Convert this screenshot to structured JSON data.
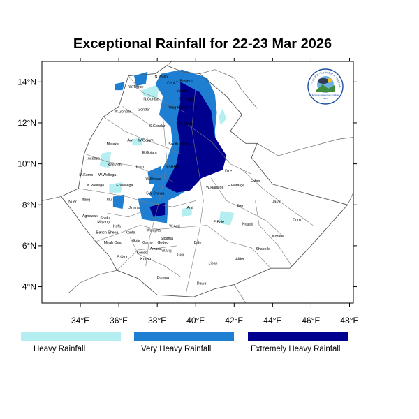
{
  "title": "Exceptional Rainfall for 22-23 Mar 2026",
  "logo": {
    "name": "Ethiopian Meteorology Institute logo",
    "text": "Ethiopian Meteorology Institute",
    "amharic": "የኢትዮጵያ ሚቲዎሮሎጂ ኢንስቲትዩት",
    "year": "EMI"
  },
  "axes": {
    "lon": {
      "range": [
        32,
        48.2
      ],
      "ticks": [
        34,
        36,
        38,
        40,
        42,
        44,
        46,
        48
      ],
      "tick_labels": [
        "34°E",
        "36°E",
        "38°E",
        "40°E",
        "42°E",
        "44°E",
        "46°E",
        "48°E"
      ]
    },
    "lat": {
      "range": [
        3.2,
        15
      ],
      "ticks": [
        4,
        6,
        8,
        10,
        12,
        14
      ],
      "tick_labels": [
        "4°N",
        "6°N",
        "8°N",
        "10°N",
        "12°N",
        "14°N"
      ]
    }
  },
  "legend": {
    "items": [
      {
        "label": "Heavy Rainfall",
        "color": "#b4eef0"
      },
      {
        "label": "Very Heavy Rainfall",
        "color": "#1e7ed2"
      },
      {
        "label": "Extremely Heavy Rainfall",
        "color": "#00008e"
      }
    ]
  },
  "categories": {
    "heavy": {
      "color": "#b4eef0"
    },
    "very_heavy": {
      "color": "#1e7ed2"
    },
    "extreme": {
      "color": "#00008e"
    }
  },
  "rain_areas": {
    "very_heavy": [
      [
        [
          38.2,
          14.4
        ],
        [
          39.3,
          14.6
        ],
        [
          40.6,
          14.2
        ],
        [
          41.0,
          13.4
        ],
        [
          41.1,
          12.5
        ],
        [
          41.0,
          11.6
        ],
        [
          41.1,
          10.4
        ],
        [
          40.3,
          9.7
        ],
        [
          39.7,
          8.8
        ],
        [
          39.0,
          8.4
        ],
        [
          38.0,
          8.0
        ],
        [
          37.6,
          8.5
        ],
        [
          38.0,
          9.3
        ],
        [
          38.5,
          10.2
        ],
        [
          38.8,
          11.0
        ],
        [
          38.7,
          11.8
        ],
        [
          38.1,
          12.4
        ],
        [
          38.3,
          13.3
        ],
        [
          37.9,
          13.9
        ]
      ],
      [
        [
          36.8,
          14.3
        ],
        [
          37.5,
          14.5
        ],
        [
          37.4,
          13.9
        ],
        [
          36.9,
          13.8
        ]
      ],
      [
        [
          35.8,
          13.9
        ],
        [
          36.3,
          14.0
        ],
        [
          36.2,
          13.6
        ],
        [
          35.8,
          13.6
        ]
      ],
      [
        [
          37.5,
          9.6
        ],
        [
          38.2,
          9.9
        ],
        [
          38.3,
          9.1
        ],
        [
          37.6,
          9.0
        ]
      ],
      [
        [
          37.0,
          8.3
        ],
        [
          38.6,
          8.4
        ],
        [
          38.5,
          7.1
        ],
        [
          37.2,
          7.3
        ]
      ],
      [
        [
          35.7,
          8.4
        ],
        [
          36.3,
          8.5
        ],
        [
          36.2,
          7.8
        ],
        [
          35.7,
          7.9
        ]
      ]
    ],
    "extreme": [
      [
        [
          39.2,
          14.0
        ],
        [
          40.2,
          13.5
        ],
        [
          40.8,
          12.6
        ],
        [
          41.0,
          11.3
        ],
        [
          41.6,
          10.4
        ],
        [
          41.4,
          9.7
        ],
        [
          40.3,
          9.3
        ],
        [
          39.7,
          8.7
        ],
        [
          39.0,
          8.6
        ],
        [
          38.4,
          8.9
        ],
        [
          39.0,
          10.0
        ],
        [
          39.2,
          11.0
        ],
        [
          39.0,
          12.0
        ],
        [
          39.2,
          13.0
        ]
      ],
      [
        [
          37.6,
          7.9
        ],
        [
          38.4,
          8.1
        ],
        [
          38.4,
          7.5
        ],
        [
          37.8,
          7.4
        ]
      ]
    ],
    "heavy": [
      [
        [
          35.1,
          10.5
        ],
        [
          35.6,
          10.6
        ],
        [
          35.5,
          9.8
        ],
        [
          35.0,
          9.9
        ]
      ],
      [
        [
          36.7,
          11.2
        ],
        [
          37.3,
          11.3
        ],
        [
          37.2,
          10.9
        ],
        [
          36.7,
          10.9
        ]
      ],
      [
        [
          41.3,
          7.7
        ],
        [
          42.0,
          7.6
        ],
        [
          41.8,
          7.0
        ],
        [
          41.2,
          7.1
        ]
      ],
      [
        [
          39.3,
          7.8
        ],
        [
          39.8,
          7.9
        ],
        [
          39.8,
          7.5
        ],
        [
          39.3,
          7.4
        ]
      ],
      [
        [
          41.2,
          12.3
        ],
        [
          41.4,
          12.7
        ],
        [
          41.6,
          12.2
        ],
        [
          41.3,
          11.9
        ]
      ],
      [
        [
          35.5,
          9.0
        ],
        [
          36.2,
          9.1
        ],
        [
          36.1,
          8.6
        ],
        [
          35.5,
          8.6
        ]
      ],
      [
        [
          37.2,
          13.6
        ],
        [
          38.1,
          13.9
        ],
        [
          38.0,
          13.2
        ],
        [
          37.3,
          13.3
        ]
      ]
    ]
  },
  "country_outline": [
    [
      33.0,
      8.4
    ],
    [
      33.9,
      8.8
    ],
    [
      34.2,
      10.5
    ],
    [
      34.5,
      11.2
    ],
    [
      35.2,
      12.3
    ],
    [
      36.0,
      12.8
    ],
    [
      36.5,
      14.3
    ],
    [
      37.9,
      14.4
    ],
    [
      38.5,
      14.8
    ],
    [
      39.3,
      14.5
    ],
    [
      40.2,
      14.4
    ],
    [
      41.6,
      13.3
    ],
    [
      42.4,
      12.4
    ],
    [
      41.8,
      11.6
    ],
    [
      42.6,
      11.0
    ],
    [
      43.2,
      11.0
    ],
    [
      42.9,
      10.3
    ],
    [
      44.0,
      9.0
    ],
    [
      47.9,
      8.0
    ],
    [
      46.0,
      6.0
    ],
    [
      44.9,
      4.9
    ],
    [
      43.9,
      4.9
    ],
    [
      42.0,
      4.1
    ],
    [
      41.0,
      3.9
    ],
    [
      39.9,
      3.5
    ],
    [
      38.0,
      3.6
    ],
    [
      37.0,
      4.4
    ],
    [
      35.9,
      4.8
    ],
    [
      35.5,
      5.5
    ],
    [
      34.8,
      6.2
    ],
    [
      34.2,
      6.9
    ],
    [
      33.6,
      7.7
    ]
  ],
  "neighbor_lines": [
    [
      [
        32,
        8.2
      ],
      [
        33.0,
        8.4
      ]
    ],
    [
      [
        38.5,
        14.8
      ],
      [
        39.0,
        15.2
      ]
    ],
    [
      [
        40.2,
        14.4
      ],
      [
        41.0,
        14.6
      ],
      [
        42.0,
        14.2
      ],
      [
        42.4,
        13.6
      ],
      [
        43.2,
        12.7
      ]
    ],
    [
      [
        43.2,
        11.0
      ],
      [
        44.3,
        10.4
      ],
      [
        45.8,
        10.8
      ],
      [
        47.4,
        11.2
      ],
      [
        48.2,
        11.3
      ]
    ],
    [
      [
        47.9,
        8.0
      ],
      [
        48.2,
        8.6
      ]
    ],
    [
      [
        42.0,
        4.1
      ],
      [
        42.6,
        3.2
      ]
    ],
    [
      [
        35.9,
        4.8
      ],
      [
        35.0,
        4.6
      ],
      [
        34.0,
        4.2
      ]
    ],
    [
      [
        32,
        3.7
      ],
      [
        33.4,
        3.7
      ],
      [
        34.0,
        4.2
      ]
    ]
  ],
  "admin_lines": [
    [
      [
        36.5,
        14.3
      ],
      [
        37.2,
        13.5
      ],
      [
        38.0,
        13.2
      ],
      [
        38.8,
        12.8
      ],
      [
        39.5,
        12.5
      ]
    ],
    [
      [
        35.2,
        12.3
      ],
      [
        36.3,
        11.6
      ],
      [
        37.3,
        11.2
      ],
      [
        38.2,
        10.9
      ],
      [
        39.2,
        10.5
      ]
    ],
    [
      [
        34.2,
        10.5
      ],
      [
        35.4,
        10.1
      ],
      [
        36.8,
        9.9
      ],
      [
        37.9,
        9.5
      ],
      [
        38.9,
        9.1
      ]
    ],
    [
      [
        33.9,
        8.8
      ],
      [
        35.2,
        8.6
      ],
      [
        36.4,
        8.4
      ],
      [
        37.5,
        8.1
      ],
      [
        38.8,
        7.9
      ],
      [
        40.0,
        8.2
      ]
    ],
    [
      [
        34.8,
        6.2
      ],
      [
        36.0,
        6.6
      ],
      [
        37.1,
        7.0
      ],
      [
        38.0,
        6.8
      ],
      [
        39.3,
        6.9
      ],
      [
        40.6,
        7.0
      ]
    ],
    [
      [
        35.9,
        4.8
      ],
      [
        37.0,
        5.8
      ],
      [
        38.2,
        5.9
      ],
      [
        39.0,
        6.0
      ]
    ],
    [
      [
        39.6,
        11.9
      ],
      [
        40.8,
        11.1
      ],
      [
        41.8,
        10.0
      ],
      [
        42.9,
        9.5
      ]
    ],
    [
      [
        40.8,
        9.3
      ],
      [
        41.6,
        8.2
      ],
      [
        42.5,
        7.8
      ],
      [
        43.7,
        7.2
      ],
      [
        44.5,
        6.5
      ]
    ],
    [
      [
        40.6,
        7.0
      ],
      [
        41.7,
        6.2
      ],
      [
        42.9,
        5.9
      ],
      [
        43.9,
        4.9
      ]
    ],
    [
      [
        38.3,
        12.3
      ],
      [
        38.4,
        11.2
      ],
      [
        38.5,
        10.1
      ],
      [
        38.3,
        9.0
      ],
      [
        38.0,
        7.8
      ],
      [
        37.6,
        6.4
      ],
      [
        37.4,
        5.0
      ]
    ],
    [
      [
        40.0,
        13.8
      ],
      [
        39.9,
        12.8
      ],
      [
        39.8,
        11.7
      ],
      [
        40.0,
        10.5
      ],
      [
        40.2,
        9.4
      ],
      [
        40.4,
        8.2
      ],
      [
        40.2,
        6.8
      ],
      [
        39.8,
        5.0
      ],
      [
        39.5,
        3.7
      ]
    ],
    [
      [
        42.3,
        9.8
      ],
      [
        43.6,
        8.7
      ],
      [
        44.9,
        7.8
      ],
      [
        46.1,
        7.0
      ]
    ],
    [
      [
        43.1,
        8.2
      ],
      [
        43.3,
        7.0
      ],
      [
        44.3,
        6.0
      ],
      [
        45.0,
        5.0
      ]
    ],
    [
      [
        36.2,
        12.8
      ],
      [
        37.0,
        12.3
      ],
      [
        37.6,
        11.9
      ]
    ],
    [
      [
        35.4,
        7.6
      ],
      [
        36.5,
        7.4
      ],
      [
        37.3,
        7.7
      ]
    ],
    [
      [
        36.6,
        6.4
      ],
      [
        37.0,
        5.6
      ],
      [
        38.4,
        5.0
      ],
      [
        39.2,
        4.5
      ]
    ]
  ],
  "region_labels": [
    {
      "name": "W.Tigray",
      "lon": 36.9,
      "lat": 13.7
    },
    {
      "name": "N.Wollo",
      "lon": 38.2,
      "lat": 14.2
    },
    {
      "name": "Cent.T",
      "lon": 38.8,
      "lat": 13.9
    },
    {
      "name": "Eastern",
      "lon": 39.5,
      "lat": 14.0
    },
    {
      "name": "Mekele",
      "lon": 39.3,
      "lat": 13.5
    },
    {
      "name": "S.Tigray",
      "lon": 39.5,
      "lat": 13.1
    },
    {
      "name": "N.Gondar",
      "lon": 37.7,
      "lat": 13.1
    },
    {
      "name": "W.Gondar",
      "lon": 36.2,
      "lat": 12.5
    },
    {
      "name": "Gondar",
      "lon": 37.3,
      "lat": 12.6
    },
    {
      "name": "Wag Hamra",
      "lon": 39.1,
      "lat": 12.7
    },
    {
      "name": "Tigr",
      "lon": 39.9,
      "lat": 12.7
    },
    {
      "name": "S.Gondar",
      "lon": 38.0,
      "lat": 11.8
    },
    {
      "name": "N.Wollo",
      "lon": 39.5,
      "lat": 11.9
    },
    {
      "name": "Metekel",
      "lon": 35.7,
      "lat": 10.9
    },
    {
      "name": "Awi",
      "lon": 36.6,
      "lat": 11.1
    },
    {
      "name": "W.Gojam",
      "lon": 37.4,
      "lat": 11.1
    },
    {
      "name": "South Wollo",
      "lon": 39.1,
      "lat": 10.9
    },
    {
      "name": "E.Gojam",
      "lon": 37.6,
      "lat": 10.5
    },
    {
      "name": "Assosa",
      "lon": 34.7,
      "lat": 10.2
    },
    {
      "name": "Kamashi",
      "lon": 35.8,
      "lat": 9.9
    },
    {
      "name": "Horo",
      "lon": 37.1,
      "lat": 9.8
    },
    {
      "name": "NSHEW",
      "lon": 38.8,
      "lat": 9.8
    },
    {
      "name": "Dire",
      "lon": 41.7,
      "lat": 9.6
    },
    {
      "name": "M.Komo",
      "lon": 34.3,
      "lat": 9.4
    },
    {
      "name": "W.Wellega",
      "lon": 35.4,
      "lat": 9.4
    },
    {
      "name": "W.Shewa",
      "lon": 37.8,
      "lat": 9.2
    },
    {
      "name": "W.Hararge",
      "lon": 41.0,
      "lat": 8.8
    },
    {
      "name": "E.Hararge",
      "lon": 42.1,
      "lat": 8.9
    },
    {
      "name": "Fafan",
      "lon": 43.1,
      "lat": 9.1
    },
    {
      "name": "K.Wellega",
      "lon": 34.8,
      "lat": 8.9
    },
    {
      "name": "E.Wellega",
      "lon": 36.3,
      "lat": 8.9
    },
    {
      "name": "SW Shewa",
      "lon": 37.9,
      "lat": 8.5
    },
    {
      "name": "Nuer",
      "lon": 33.6,
      "lat": 8.1
    },
    {
      "name": "Itang",
      "lon": 34.3,
      "lat": 8.2
    },
    {
      "name": "Illu",
      "lon": 35.5,
      "lat": 8.2
    },
    {
      "name": "Jimma",
      "lon": 36.8,
      "lat": 7.8
    },
    {
      "name": "Arsi",
      "lon": 39.7,
      "lat": 7.8
    },
    {
      "name": "Erer",
      "lon": 42.3,
      "lat": 7.9
    },
    {
      "name": "Jarar",
      "lon": 44.2,
      "lat": 8.1
    },
    {
      "name": "Agnewak",
      "lon": 34.5,
      "lat": 7.4
    },
    {
      "name": "Sheka",
      "lon": 35.3,
      "lat": 7.3
    },
    {
      "name": "Majang",
      "lon": 35.2,
      "lat": 7.1
    },
    {
      "name": "Kefa",
      "lon": 35.9,
      "lat": 6.9
    },
    {
      "name": "Bench Sheko",
      "lon": 35.4,
      "lat": 6.6
    },
    {
      "name": "Konta",
      "lon": 36.6,
      "lat": 6.6
    },
    {
      "name": "Wolayita",
      "lon": 37.8,
      "lat": 6.7
    },
    {
      "name": "W.Arsi",
      "lon": 38.9,
      "lat": 6.9
    },
    {
      "name": "E.Bale",
      "lon": 41.2,
      "lat": 7.1
    },
    {
      "name": "Nogob",
      "lon": 42.7,
      "lat": 7.0
    },
    {
      "name": "Doolo",
      "lon": 45.3,
      "lat": 7.2
    },
    {
      "name": "Sidama",
      "lon": 38.5,
      "lat": 6.3
    },
    {
      "name": "Korahe",
      "lon": 44.3,
      "lat": 6.4
    },
    {
      "name": "Mirab Omo",
      "lon": 35.7,
      "lat": 6.1
    },
    {
      "name": "Gofa",
      "lon": 36.9,
      "lat": 6.2
    },
    {
      "name": "Gamo",
      "lon": 37.5,
      "lat": 6.1
    },
    {
      "name": "Gedeo",
      "lon": 38.3,
      "lat": 6.1
    },
    {
      "name": "Bale",
      "lon": 40.1,
      "lat": 6.1
    },
    {
      "name": "Shabelle",
      "lon": 43.5,
      "lat": 5.8
    },
    {
      "name": "Amaro",
      "lon": 37.9,
      "lat": 5.8
    },
    {
      "name": "W.Guji",
      "lon": 38.5,
      "lat": 5.7
    },
    {
      "name": "Konso",
      "lon": 37.2,
      "lat": 5.6
    },
    {
      "name": "Guji",
      "lon": 39.2,
      "lat": 5.5
    },
    {
      "name": "S.Omo",
      "lon": 36.2,
      "lat": 5.4
    },
    {
      "name": "Konso",
      "lon": 37.4,
      "lat": 5.3
    },
    {
      "name": "Afder",
      "lon": 42.3,
      "lat": 5.3
    },
    {
      "name": "Liban",
      "lon": 40.9,
      "lat": 5.1
    },
    {
      "name": "Borena",
      "lon": 38.3,
      "lat": 4.4
    },
    {
      "name": "Dawa",
      "lon": 40.3,
      "lat": 4.1
    }
  ]
}
